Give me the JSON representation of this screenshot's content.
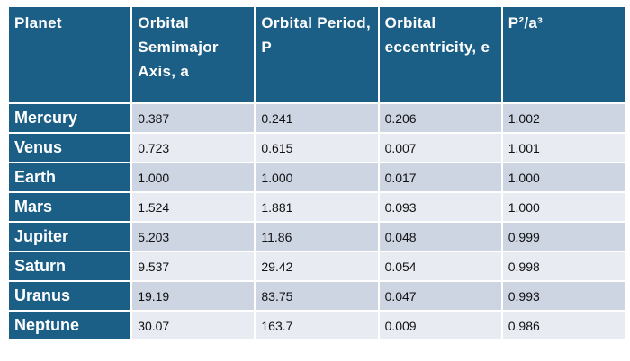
{
  "table": {
    "header": [
      "Planet",
      "Orbital Semimajor Axis, a",
      "Orbital Period, P",
      "Orbital eccentricity, e",
      "P²/a³"
    ],
    "rows": [
      [
        "Mercury",
        "0.387",
        "0.241",
        "0.206",
        "1.002"
      ],
      [
        "Venus",
        "0.723",
        "0.615",
        "0.007",
        "1.001"
      ],
      [
        "Earth",
        "1.000",
        "1.000",
        "0.017",
        "1.000"
      ],
      [
        "Mars",
        "1.524",
        "1.881",
        "0.093",
        "1.000"
      ],
      [
        "Jupiter",
        "5.203",
        "11.86",
        "0.048",
        "0.999"
      ],
      [
        "Saturn",
        "9.537",
        "29.42",
        "0.054",
        "0.998"
      ],
      [
        "Uranus",
        "19.19",
        "83.75",
        "0.047",
        "0.993"
      ],
      [
        "Neptune",
        "30.07",
        "163.7",
        "0.009",
        "0.986"
      ]
    ]
  }
}
